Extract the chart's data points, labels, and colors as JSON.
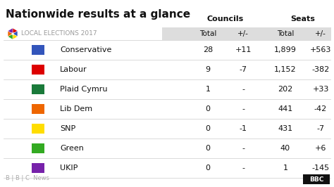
{
  "title": "Nationwide results at a glance",
  "subtitle_councils": "Councils",
  "subtitle_seats": "Seats",
  "header_row": [
    "Total",
    "+/-",
    "Total",
    "+/-"
  ],
  "parties": [
    {
      "name": "Conservative",
      "color": "#3355BB",
      "councils_total": "28",
      "councils_change": "+11",
      "seats_total": "1,899",
      "seats_change": "+563"
    },
    {
      "name": "Labour",
      "color": "#DD0000",
      "councils_total": "9",
      "councils_change": "-7",
      "seats_total": "1,152",
      "seats_change": "-382"
    },
    {
      "name": "Plaid Cymru",
      "color": "#1A7A3A",
      "councils_total": "1",
      "councils_change": "-",
      "seats_total": "202",
      "seats_change": "+33"
    },
    {
      "name": "Lib Dem",
      "color": "#EE6600",
      "councils_total": "0",
      "councils_change": "-",
      "seats_total": "441",
      "seats_change": "-42"
    },
    {
      "name": "SNP",
      "color": "#FFDD00",
      "councils_total": "0",
      "councils_change": "-1",
      "seats_total": "431",
      "seats_change": "-7"
    },
    {
      "name": "Green",
      "color": "#33AA22",
      "councils_total": "0",
      "councils_change": "-",
      "seats_total": "40",
      "seats_change": "+6"
    },
    {
      "name": "UKIP",
      "color": "#7722AA",
      "councils_total": "0",
      "councils_change": "-",
      "seats_total": "1",
      "seats_change": "-145"
    }
  ],
  "bg_color": "#FFFFFF",
  "header_bg": "#DDDDDD",
  "row_line_color": "#CCCCCC",
  "text_color": "#111111",
  "logo_text": "LOCAL ELECTIONS 2017",
  "fig_width": 4.74,
  "fig_height": 2.66,
  "dpi": 100
}
